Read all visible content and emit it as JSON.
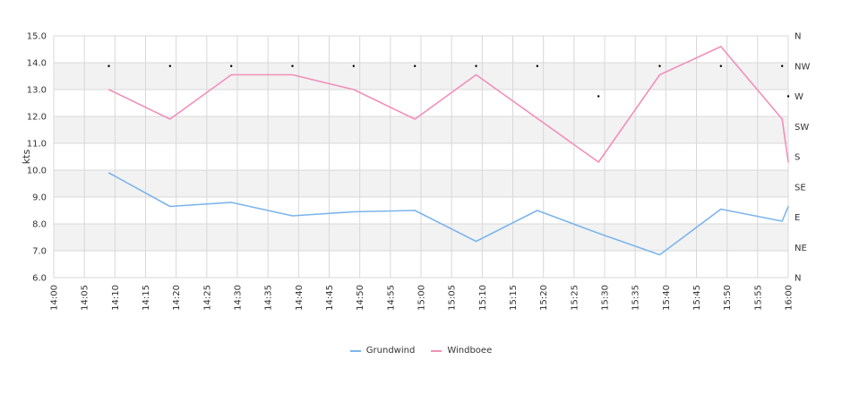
{
  "chart_data": {
    "type": "line",
    "ylabel": "kts",
    "ylim": [
      6.0,
      15.0
    ],
    "yticks": [
      "6.0",
      "7.0",
      "8.0",
      "9.0",
      "10.0",
      "11.0",
      "12.0",
      "13.0",
      "14.0",
      "15.0"
    ],
    "xticks": [
      "14:00",
      "14:05",
      "14:10",
      "14:15",
      "14:20",
      "14:25",
      "14:30",
      "14:35",
      "14:40",
      "14:45",
      "14:50",
      "14:55",
      "15:00",
      "15:05",
      "15:10",
      "15:15",
      "15:20",
      "15:25",
      "15:30",
      "15:35",
      "15:40",
      "15:45",
      "15:50",
      "15:55",
      "16:00"
    ],
    "xlim": [
      "14:00",
      "16:00"
    ],
    "direction_ticks": [
      "N",
      "NE",
      "E",
      "SE",
      "S",
      "SW",
      "W",
      "NW",
      "N"
    ],
    "colors": {
      "Grundwind": "#7cb5ec",
      "Windboee": "#f28fb8",
      "direction": "#000000",
      "band": "#f2f2f2",
      "grid": "#d8d8d8"
    },
    "series": [
      {
        "name": "Grundwind",
        "points": [
          [
            "14:09",
            9.9
          ],
          [
            "14:19",
            8.65
          ],
          [
            "14:29",
            8.8
          ],
          [
            "14:39",
            8.3
          ],
          [
            "14:49",
            8.45
          ],
          [
            "14:59",
            8.5
          ],
          [
            "15:09",
            7.35
          ],
          [
            "15:19",
            8.5
          ],
          [
            "15:29",
            7.65
          ],
          [
            "15:39",
            6.85
          ],
          [
            "15:49",
            8.55
          ],
          [
            "15:59",
            8.1
          ],
          [
            "16:00",
            8.65
          ]
        ]
      },
      {
        "name": "Windboee",
        "points": [
          [
            "14:09",
            13.0
          ],
          [
            "14:19",
            11.9
          ],
          [
            "14:29",
            13.55
          ],
          [
            "14:39",
            13.55
          ],
          [
            "14:49",
            13.0
          ],
          [
            "14:59",
            11.9
          ],
          [
            "15:09",
            13.55
          ],
          [
            "15:29",
            10.3
          ],
          [
            "15:39",
            13.55
          ],
          [
            "15:49",
            14.6
          ],
          [
            "15:59",
            11.9
          ],
          [
            "16:00",
            10.3
          ]
        ]
      }
    ],
    "direction_points": [
      [
        "14:09",
        "NW"
      ],
      [
        "14:19",
        "NW"
      ],
      [
        "14:29",
        "NW"
      ],
      [
        "14:39",
        "NW"
      ],
      [
        "14:49",
        "NW"
      ],
      [
        "14:59",
        "NW"
      ],
      [
        "15:09",
        "NW"
      ],
      [
        "15:19",
        "NW"
      ],
      [
        "15:29",
        "W"
      ],
      [
        "15:39",
        "NW"
      ],
      [
        "15:49",
        "NW"
      ],
      [
        "15:59",
        "NW"
      ],
      [
        "16:00",
        "W"
      ]
    ],
    "legend": [
      "Grundwind",
      "Windboee"
    ],
    "legend_position": "bottom"
  }
}
